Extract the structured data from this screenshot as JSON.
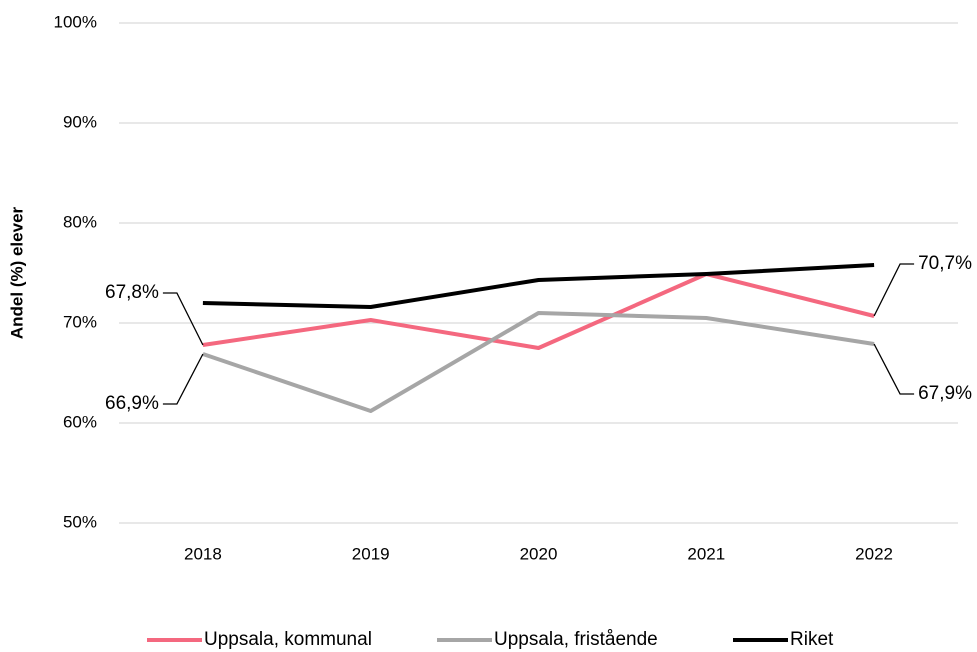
{
  "chart_data": {
    "type": "line",
    "y_label": "Andel (%) elever",
    "categories": [
      "2018",
      "2019",
      "2020",
      "2021",
      "2022"
    ],
    "series": [
      {
        "name": "Uppsala, kommunal",
        "color": "#f4687f",
        "values": [
          67.8,
          70.3,
          67.5,
          74.9,
          70.7
        ],
        "value_labels": [
          "67,8%",
          null,
          null,
          null,
          "70,7%"
        ]
      },
      {
        "name": "Uppsala, fristående",
        "color": "#a6a6a6",
        "values": [
          66.9,
          61.2,
          71.0,
          70.5,
          67.9
        ],
        "value_labels": [
          "66,9%",
          null,
          null,
          null,
          "67,9%"
        ]
      },
      {
        "name": "Riket",
        "color": "#000000",
        "values": [
          72.0,
          71.6,
          74.3,
          74.9,
          75.8
        ]
      }
    ],
    "ylim": [
      50,
      100
    ],
    "yticks": [
      {
        "value": 50,
        "label": "50%"
      },
      {
        "value": 60,
        "label": "60%"
      },
      {
        "value": 70,
        "label": "70%"
      },
      {
        "value": 80,
        "label": "80%"
      },
      {
        "value": 90,
        "label": "90%"
      },
      {
        "value": 100,
        "label": "100%"
      }
    ],
    "grid": true,
    "legend": "bottom"
  }
}
